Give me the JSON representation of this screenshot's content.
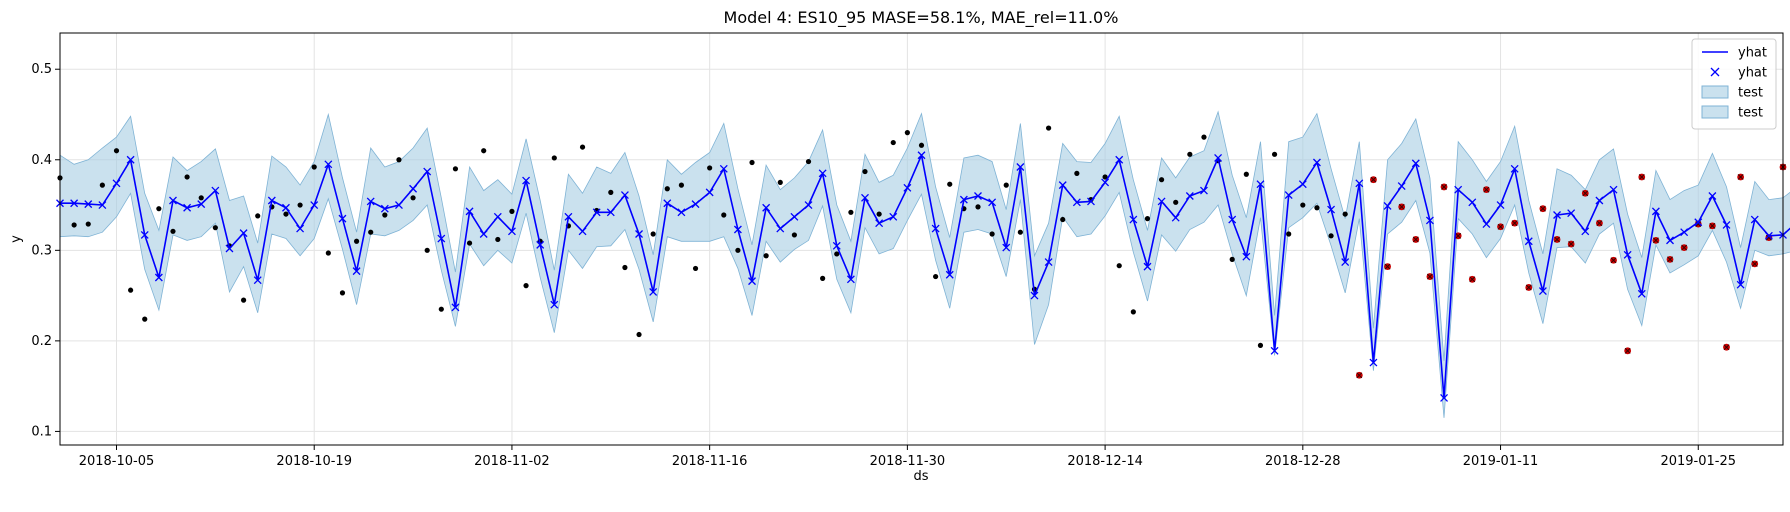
{
  "chart_data": {
    "type": "line",
    "title": "Model 4: ES10_95 MASE=58.1%, MAE_rel=11.0%",
    "xlabel": "ds",
    "ylabel": "y",
    "xlim": [
      "2018-10-01",
      "2019-01-31"
    ],
    "ylim": [
      0.085,
      0.54
    ],
    "x_ticks": [
      "2018-10-05",
      "2018-10-19",
      "2018-11-02",
      "2018-11-16",
      "2018-11-30",
      "2018-12-14",
      "2018-12-28",
      "2019-01-11",
      "2019-01-25"
    ],
    "y_ticks": [
      0.1,
      0.2,
      0.3,
      0.4,
      0.5
    ],
    "grid": true,
    "legend_position": "top-right",
    "colors": {
      "yhat": "#0000ff",
      "band": "#a6cde3",
      "band_edge": "#7fb3d5",
      "actual": "#000000",
      "test": "#cc0000"
    },
    "legend": [
      {
        "label": "yhat",
        "kind": "line"
      },
      {
        "label": "yhat",
        "kind": "marker"
      },
      {
        "label": "test",
        "kind": "patch"
      },
      {
        "label": "test",
        "kind": "patch"
      }
    ],
    "series": [
      {
        "name": "yhat",
        "start": "2018-10-01",
        "values": [
          0.352,
          0.352,
          0.351,
          0.35,
          0.374,
          0.4,
          0.317,
          0.27,
          0.355,
          0.347,
          0.351,
          0.366,
          0.302,
          0.319,
          0.267,
          0.355,
          0.347,
          0.324,
          0.35,
          0.395,
          0.335,
          0.277,
          0.354,
          0.346,
          0.35,
          0.368,
          0.387,
          0.313,
          0.237,
          0.343,
          0.318,
          0.337,
          0.321,
          0.377,
          0.306,
          0.24,
          0.337,
          0.321,
          0.342,
          0.342,
          0.361,
          0.318,
          0.254,
          0.352,
          0.342,
          0.351,
          0.364,
          0.39,
          0.323,
          0.266,
          0.347,
          0.324,
          0.337,
          0.35,
          0.385,
          0.305,
          0.268,
          0.358,
          0.33,
          0.337,
          0.369,
          0.405,
          0.324,
          0.273,
          0.356,
          0.36,
          0.353,
          0.303,
          0.392,
          0.25,
          0.287,
          0.372,
          0.353,
          0.354,
          0.375,
          0.4,
          0.334,
          0.282,
          0.354,
          0.336,
          0.36,
          0.366,
          0.402,
          0.334,
          0.293,
          0.373,
          0.189,
          0.361,
          0.373,
          0.397,
          0.345,
          0.287,
          0.374,
          0.176,
          0.349,
          0.371,
          0.396,
          0.333,
          0.137,
          0.367,
          0.353,
          0.329,
          0.35,
          0.39,
          0.31,
          0.255,
          0.339,
          0.341,
          0.321,
          0.355,
          0.367,
          0.295,
          0.252,
          0.343,
          0.311,
          0.32,
          0.331,
          0.36,
          0.328,
          0.262,
          0.334,
          0.316,
          0.317,
          0.331
        ]
      },
      {
        "name": "band_upper",
        "start": "2018-10-01",
        "values": [
          0.405,
          0.395,
          0.4,
          0.413,
          0.425,
          0.448,
          0.363,
          0.322,
          0.403,
          0.388,
          0.398,
          0.412,
          0.355,
          0.36,
          0.308,
          0.404,
          0.392,
          0.372,
          0.398,
          0.45,
          0.38,
          0.32,
          0.413,
          0.392,
          0.398,
          0.413,
          0.435,
          0.358,
          0.276,
          0.392,
          0.366,
          0.378,
          0.362,
          0.423,
          0.355,
          0.278,
          0.384,
          0.363,
          0.392,
          0.385,
          0.408,
          0.36,
          0.295,
          0.4,
          0.384,
          0.397,
          0.408,
          0.44,
          0.368,
          0.306,
          0.394,
          0.367,
          0.38,
          0.398,
          0.433,
          0.35,
          0.31,
          0.406,
          0.375,
          0.383,
          0.413,
          0.451,
          0.37,
          0.314,
          0.402,
          0.405,
          0.398,
          0.345,
          0.44,
          0.294,
          0.33,
          0.418,
          0.398,
          0.397,
          0.418,
          0.448,
          0.378,
          0.322,
          0.402,
          0.38,
          0.403,
          0.41,
          0.453,
          0.383,
          0.336,
          0.42,
          0.228,
          0.42,
          0.425,
          0.451,
          0.39,
          0.335,
          0.42,
          0.214,
          0.4,
          0.418,
          0.445,
          0.38,
          0.178,
          0.42,
          0.4,
          0.376,
          0.398,
          0.437,
          0.355,
          0.296,
          0.39,
          0.383,
          0.367,
          0.4,
          0.412,
          0.34,
          0.292,
          0.388,
          0.356,
          0.366,
          0.372,
          0.407,
          0.37,
          0.303,
          0.376,
          0.356,
          0.358,
          0.37
        ]
      },
      {
        "name": "band_lower",
        "start": "2018-10-01",
        "values": [
          0.315,
          0.316,
          0.315,
          0.32,
          0.337,
          0.363,
          0.279,
          0.234,
          0.317,
          0.311,
          0.315,
          0.33,
          0.254,
          0.282,
          0.231,
          0.318,
          0.313,
          0.294,
          0.313,
          0.357,
          0.301,
          0.24,
          0.318,
          0.316,
          0.322,
          0.333,
          0.35,
          0.278,
          0.216,
          0.307,
          0.283,
          0.3,
          0.286,
          0.341,
          0.27,
          0.209,
          0.3,
          0.28,
          0.304,
          0.305,
          0.323,
          0.279,
          0.221,
          0.315,
          0.31,
          0.31,
          0.31,
          0.315,
          0.28,
          0.228,
          0.31,
          0.287,
          0.301,
          0.311,
          0.349,
          0.268,
          0.231,
          0.325,
          0.296,
          0.302,
          0.333,
          0.362,
          0.289,
          0.236,
          0.32,
          0.323,
          0.318,
          0.271,
          0.356,
          0.196,
          0.24,
          0.337,
          0.315,
          0.318,
          0.338,
          0.364,
          0.298,
          0.244,
          0.317,
          0.299,
          0.323,
          0.331,
          0.35,
          0.296,
          0.25,
          0.336,
          0.184,
          0.325,
          0.336,
          0.352,
          0.305,
          0.253,
          0.335,
          0.167,
          0.318,
          0.331,
          0.355,
          0.297,
          0.115,
          0.335,
          0.318,
          0.292,
          0.313,
          0.35,
          0.275,
          0.219,
          0.303,
          0.304,
          0.286,
          0.318,
          0.33,
          0.257,
          0.217,
          0.306,
          0.275,
          0.284,
          0.294,
          0.322,
          0.287,
          0.236,
          0.3,
          0.294,
          0.296,
          0.3
        ]
      },
      {
        "name": "actual",
        "start": "2018-10-01",
        "values": [
          0.38,
          0.328,
          0.329,
          0.372,
          0.41,
          0.256,
          0.224,
          0.346,
          0.321,
          0.381,
          0.358,
          0.325,
          0.305,
          0.245,
          0.338,
          0.348,
          0.34,
          0.35,
          0.392,
          0.297,
          0.253,
          0.31,
          0.32,
          0.339,
          0.4,
          0.358,
          0.3,
          0.235,
          0.39,
          0.308,
          0.41,
          0.312,
          0.343,
          0.261,
          0.31,
          0.402,
          0.327,
          0.414,
          0.344,
          0.364,
          0.281,
          0.207,
          0.318,
          0.368,
          0.372,
          0.28,
          0.391,
          0.339,
          0.3,
          0.397,
          0.294,
          0.375,
          0.317,
          0.398,
          0.269,
          0.296,
          0.342,
          0.387,
          0.34,
          0.419,
          0.43,
          0.416,
          0.271,
          0.373,
          0.346,
          0.348,
          0.318,
          0.372,
          0.32,
          0.257,
          0.435,
          0.334,
          0.385,
          0.356,
          0.381,
          0.283,
          0.232,
          0.335,
          0.378,
          0.353,
          0.406,
          0.425,
          0.399,
          0.29,
          0.384,
          0.195,
          0.406,
          0.318,
          0.35,
          0.347,
          0.316,
          0.34
        ]
      },
      {
        "name": "test",
        "start": "2019-01-01",
        "values": [
          0.162,
          0.378,
          0.282,
          0.348,
          0.312,
          0.271,
          0.37,
          0.316,
          0.268,
          0.367,
          0.326,
          0.33,
          0.259,
          0.346,
          0.312,
          0.307,
          0.363,
          0.33,
          0.289,
          0.189,
          0.381,
          0.311,
          0.29,
          0.303,
          0.329,
          0.327,
          0.193,
          0.381,
          0.285,
          0.314,
          0.392
        ]
      }
    ]
  }
}
